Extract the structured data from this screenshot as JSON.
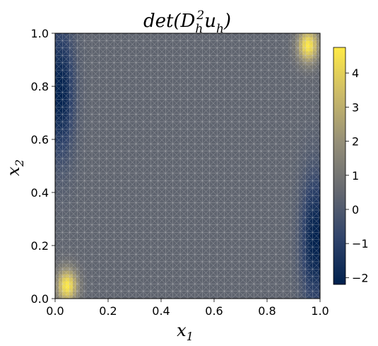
{
  "chart_data": {
    "type": "heatmap",
    "title": "det(D_h^2 u_h)",
    "title_parts": {
      "pre": "det(D",
      "sub1": "h",
      "sup1": "2",
      "mid": "u",
      "sub2": "h",
      "post": ")"
    },
    "xlabel": "x_1",
    "xlabel_parts": {
      "base": "x",
      "sub": "1"
    },
    "ylabel": "x_2",
    "ylabel_parts": {
      "base": "x",
      "sub": "2"
    },
    "xlim": [
      0.0,
      1.0
    ],
    "ylim": [
      0.0,
      1.0
    ],
    "xticks": [
      "0.0",
      "0.2",
      "0.4",
      "0.6",
      "0.8",
      "1.0"
    ],
    "yticks": [
      "0.0",
      "0.2",
      "0.4",
      "0.6",
      "0.8",
      "1.0"
    ],
    "colorbar": {
      "range": [
        -2.2,
        4.75
      ],
      "ticks": [
        -2,
        -1,
        0,
        1,
        2,
        3,
        4
      ],
      "tick_labels": [
        "−2",
        "−1",
        "0",
        "1",
        "2",
        "3",
        "4"
      ],
      "colormap": "cividis",
      "stops": [
        "#00204d",
        "#31446b",
        "#666970",
        "#958f78",
        "#cbba69",
        "#ffea46"
      ]
    },
    "background_value": 0.4,
    "hotspots": [
      {
        "x": 0.045,
        "y": 0.05,
        "value": 4.7,
        "sx": 0.028,
        "sy": 0.045
      },
      {
        "x": 0.955,
        "y": 0.955,
        "value": 4.7,
        "sx": 0.028,
        "sy": 0.045
      },
      {
        "x": 0.02,
        "y": 0.78,
        "value": -2.2,
        "sx": 0.035,
        "sy": 0.17
      },
      {
        "x": 0.98,
        "y": 0.22,
        "value": -2.2,
        "sx": 0.035,
        "sy": 0.17
      }
    ],
    "mesh": {
      "visible": true,
      "color": "#d8d8d8",
      "divisions": 36
    }
  }
}
